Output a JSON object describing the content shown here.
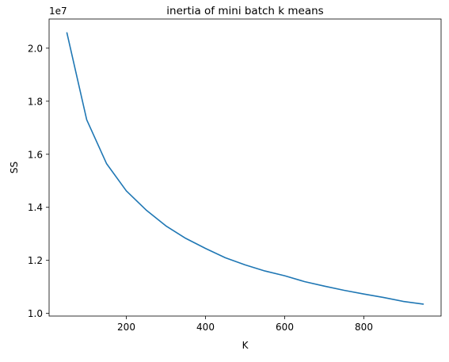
{
  "chart_data": {
    "type": "line",
    "title": "inertia of mini batch k means",
    "xlabel": "K",
    "ylabel": "SS",
    "y_offset_label": "1e7",
    "xlim": [
      5,
      995
    ],
    "ylim": [
      0.99,
      2.11
    ],
    "x_ticks": [
      200,
      400,
      600,
      800
    ],
    "x_tick_labels": [
      "200",
      "400",
      "600",
      "800"
    ],
    "y_ticks": [
      1.0,
      1.2,
      1.4,
      1.6,
      1.8,
      2.0
    ],
    "y_tick_labels": [
      "1.0",
      "1.2",
      "1.4",
      "1.6",
      "1.8",
      "2.0"
    ],
    "grid": false,
    "series": [
      {
        "color": "#1f77b4",
        "x": [
          50,
          100,
          150,
          200,
          250,
          300,
          350,
          400,
          450,
          500,
          550,
          600,
          650,
          700,
          750,
          800,
          850,
          900,
          950
        ],
        "y": [
          2.058,
          1.73,
          1.565,
          1.462,
          1.39,
          1.33,
          1.283,
          1.245,
          1.21,
          1.183,
          1.16,
          1.142,
          1.12,
          1.103,
          1.087,
          1.073,
          1.06,
          1.045,
          1.035
        ]
      }
    ]
  }
}
